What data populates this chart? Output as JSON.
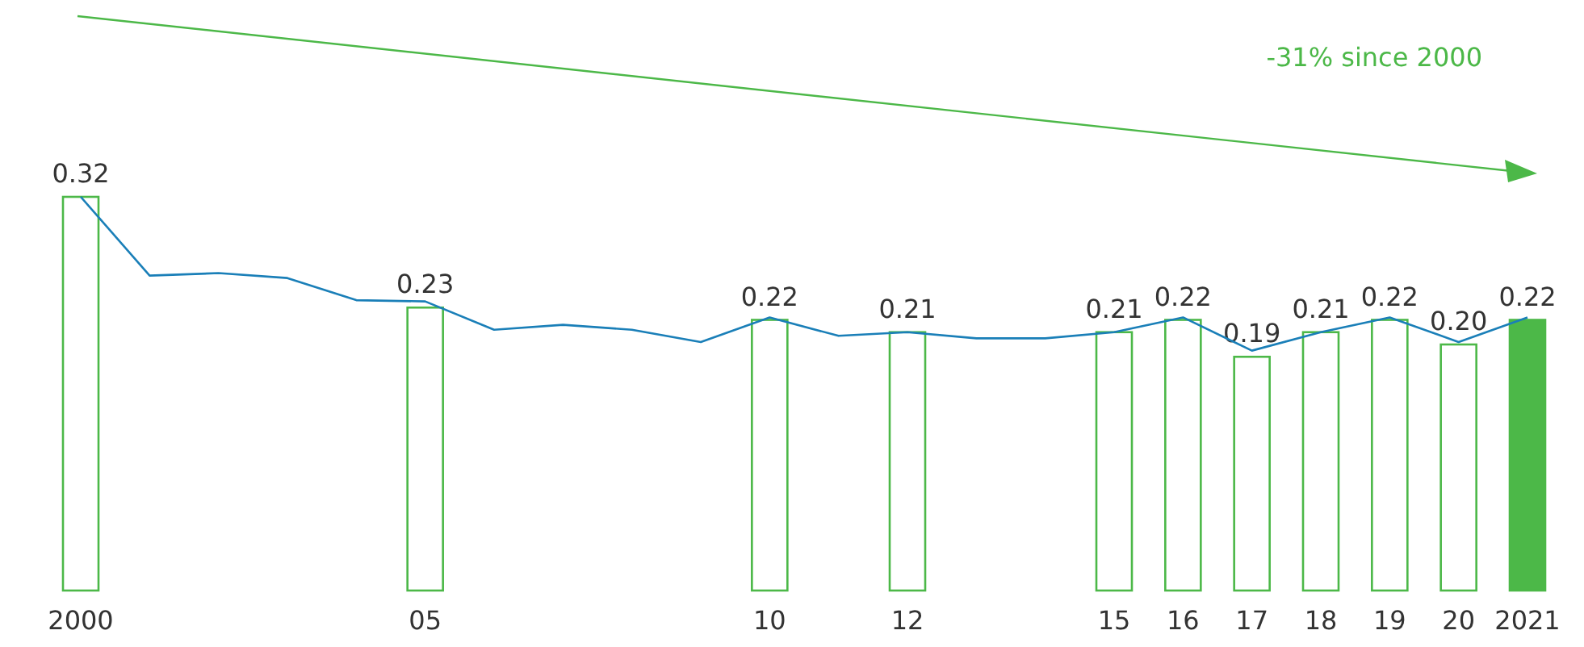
{
  "chart_data": {
    "type": "bar",
    "x": [
      2000,
      2005,
      2010,
      2012,
      2015,
      2016,
      2017,
      2018,
      2019,
      2020,
      2021
    ],
    "xticks": [
      2000,
      {
        "value": 2005,
        "label": "05"
      },
      {
        "value": 2010,
        "label": "10"
      },
      {
        "value": 2012,
        "label": "12"
      },
      {
        "value": 2015,
        "label": "15"
      },
      {
        "value": 2016,
        "label": "16"
      },
      {
        "value": 2017,
        "label": "17"
      },
      {
        "value": 2018,
        "label": "18"
      },
      {
        "value": 2019,
        "label": "19"
      },
      {
        "value": 2020,
        "label": "20"
      },
      2021
    ],
    "xlim": [
      2000,
      2021
    ],
    "tick_labels": "x",
    "annotations": [
      "-31% since 2000"
    ],
    "series": [
      {
        "color": "#4cb848",
        "colors": [
          "#ffffff",
          "#ffffff",
          "#ffffff",
          "#ffffff",
          "#ffffff",
          "#ffffff",
          "#ffffff",
          "#ffffff",
          "#ffffff",
          "#ffffff",
          "#4cb848"
        ],
        "values": [
          0.32,
          0.23,
          0.22,
          0.21,
          0.21,
          0.22,
          0.19,
          0.21,
          0.22,
          0.2,
          0.22
        ],
        "value_labels": [
          "0.32",
          "0.23",
          "0.22",
          "0.21",
          "0.21",
          "0.22",
          "0.19",
          "0.21",
          "0.22",
          "0.20",
          "0.22"
        ]
      },
      {
        "type": "line",
        "color": "#1a7fb8",
        "x": [
          2000,
          2001,
          2002,
          2003,
          2004,
          2005,
          2006,
          2007,
          2008,
          2009,
          2010,
          2011,
          2012,
          2013,
          2014,
          2015,
          2016,
          2017,
          2018,
          2019,
          2020,
          2021
        ],
        "values": [
          0.32,
          0.256,
          0.258,
          0.254,
          0.236,
          0.235,
          0.212,
          0.216,
          0.212,
          0.202,
          0.222,
          0.207,
          0.21,
          0.205,
          0.205,
          0.21,
          0.222,
          0.195,
          0.21,
          0.222,
          0.202,
          0.222
        ]
      }
    ]
  }
}
